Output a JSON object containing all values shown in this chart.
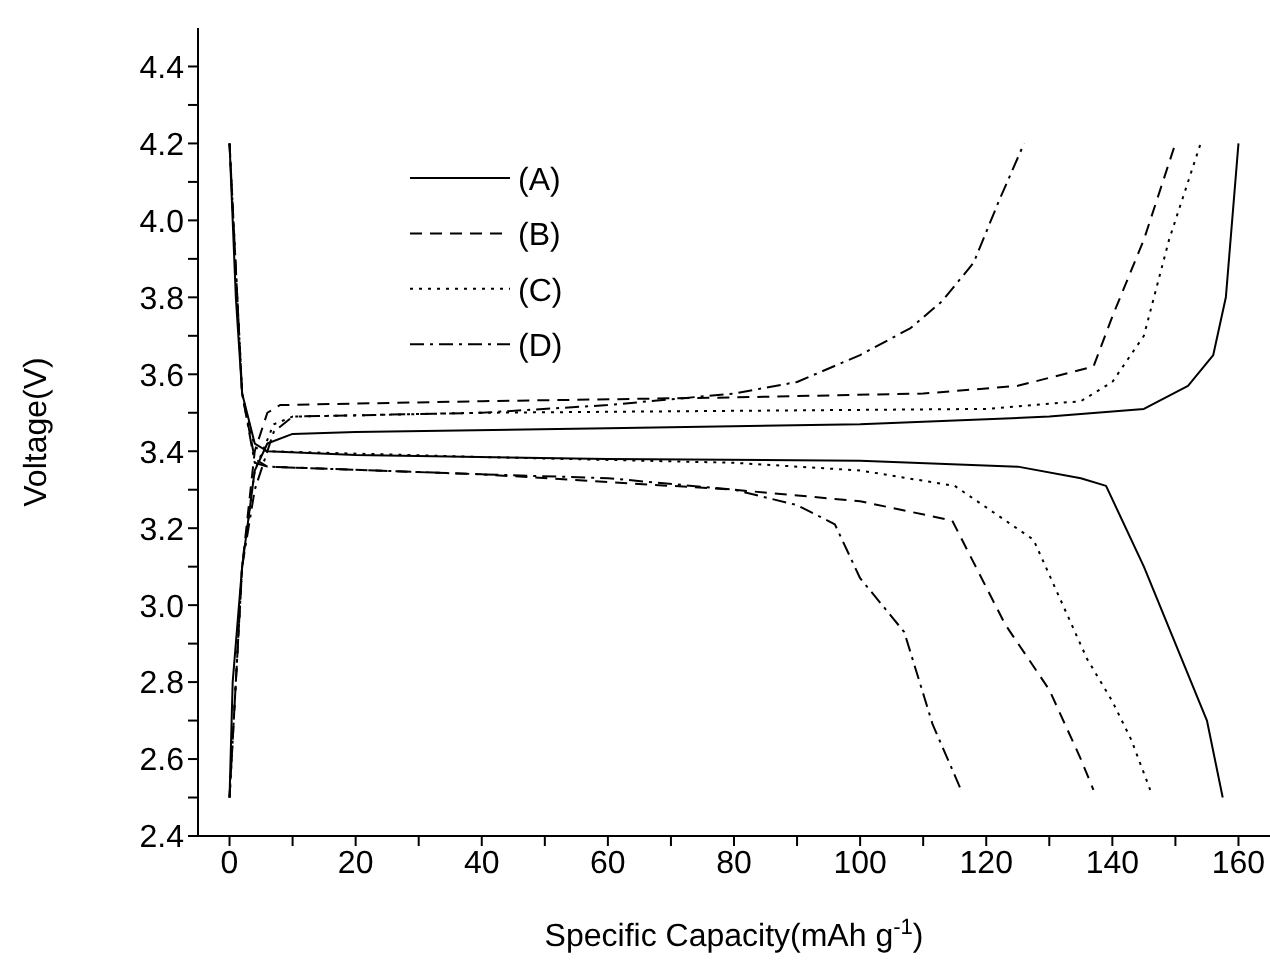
{
  "chart_data": {
    "type": "line",
    "xlabel": "Specific Capacity(mAh g$^{-1}$)",
    "ylabel": "Voltage(V)",
    "xlim": [
      -5,
      165
    ],
    "ylim": [
      2.4,
      4.5
    ],
    "xticks": [
      0,
      {
        "value": 10,
        "label": null
      },
      20,
      {
        "value": 30,
        "label": null
      },
      40,
      {
        "value": 50,
        "label": null
      },
      60,
      {
        "value": 70,
        "label": null
      },
      80,
      {
        "value": 90,
        "label": null
      },
      100,
      {
        "value": 110,
        "label": null
      },
      120,
      {
        "value": 130,
        "label": null
      },
      140,
      {
        "value": 150,
        "label": null
      },
      160
    ],
    "yticks": [
      {
        "value": 2.4,
        "label": "2.4"
      },
      {
        "value": 2.5,
        "label": null
      },
      {
        "value": 2.6,
        "label": "2.6"
      },
      {
        "value": 2.7,
        "label": null
      },
      {
        "value": 2.8,
        "label": "2.8"
      },
      {
        "value": 2.9,
        "label": null
      },
      {
        "value": 3.0,
        "label": "3.0"
      },
      {
        "value": 3.1,
        "label": null
      },
      {
        "value": 3.2,
        "label": "3.2"
      },
      {
        "value": 3.3,
        "label": null
      },
      {
        "value": 3.4,
        "label": "3.4"
      },
      {
        "value": 3.5,
        "label": null
      },
      {
        "value": 3.6,
        "label": "3.6"
      },
      {
        "value": 3.7,
        "label": null
      },
      {
        "value": 3.8,
        "label": "3.8"
      },
      {
        "value": 3.9,
        "label": null
      },
      {
        "value": 4.0,
        "label": "4.0"
      },
      {
        "value": 4.1,
        "label": null
      },
      {
        "value": 4.2,
        "label": "4.2"
      },
      {
        "value": 4.3,
        "label": null
      },
      {
        "value": 4.4,
        "label": "4.4"
      }
    ],
    "grid": false,
    "legend": "top left",
    "marker": "none",
    "series": [
      {
        "name": "(A)",
        "color": "#000000",
        "line_style": "solid",
        "x": [
          0,
          0.5,
          2,
          4,
          6,
          10,
          20,
          60,
          100,
          130,
          145,
          152,
          156,
          158,
          159,
          160,
          null,
          0,
          1,
          2,
          4,
          6,
          20,
          60,
          100,
          125,
          135,
          139,
          145,
          150,
          155,
          157.5
        ],
        "values": [
          2.5,
          2.8,
          3.1,
          3.35,
          3.42,
          3.445,
          3.45,
          3.46,
          3.47,
          3.49,
          3.51,
          3.57,
          3.65,
          3.8,
          4.0,
          4.2,
          null,
          4.2,
          3.8,
          3.55,
          3.42,
          3.4,
          3.39,
          3.38,
          3.375,
          3.36,
          3.33,
          3.31,
          3.1,
          2.9,
          2.7,
          2.5
        ]
      },
      {
        "name": "(B)",
        "color": "#000000",
        "line_style": "dashed",
        "x": [
          0,
          2,
          4,
          6,
          8,
          40,
          80,
          110,
          125,
          137,
          140,
          145,
          150,
          null,
          0,
          2,
          4,
          6,
          40,
          80,
          100,
          114.6,
          123,
          130,
          135,
          137
        ],
        "values": [
          2.5,
          3.1,
          3.4,
          3.5,
          3.52,
          3.53,
          3.54,
          3.55,
          3.57,
          3.62,
          3.75,
          3.95,
          4.2,
          null,
          4.2,
          3.55,
          3.38,
          3.36,
          3.34,
          3.3,
          3.27,
          3.22,
          2.95,
          2.78,
          2.6,
          2.52
        ]
      },
      {
        "name": "(C)",
        "color": "#000000",
        "line_style": "dotted",
        "x": [
          0,
          2,
          4,
          7,
          10,
          40,
          80,
          120,
          135,
          140,
          145,
          149,
          154,
          null,
          0,
          2,
          4,
          6,
          40,
          80,
          100,
          115,
          127.5,
          136,
          140,
          143,
          146
        ],
        "values": [
          2.5,
          3.1,
          3.35,
          3.47,
          3.49,
          3.5,
          3.505,
          3.51,
          3.53,
          3.58,
          3.7,
          3.95,
          4.2,
          null,
          4.2,
          3.55,
          3.41,
          3.4,
          3.385,
          3.37,
          3.35,
          3.31,
          3.17,
          2.86,
          2.75,
          2.65,
          2.52
        ]
      },
      {
        "name": "(D)",
        "color": "#000000",
        "line_style": "dashdot",
        "x": [
          0,
          2,
          4,
          7,
          10,
          40,
          60,
          80,
          90,
          100,
          108,
          113,
          118,
          122,
          126,
          null,
          0,
          2,
          4,
          6,
          40,
          60,
          80,
          90,
          96,
          100,
          104,
          107,
          111.5,
          116
        ],
        "values": [
          2.5,
          3.1,
          3.3,
          3.45,
          3.49,
          3.5,
          3.52,
          3.55,
          3.58,
          3.65,
          3.72,
          3.79,
          3.89,
          4.05,
          4.2,
          null,
          4.2,
          3.55,
          3.37,
          3.36,
          3.34,
          3.33,
          3.3,
          3.26,
          3.21,
          3.07,
          2.99,
          2.93,
          2.69,
          2.52
        ]
      }
    ]
  }
}
